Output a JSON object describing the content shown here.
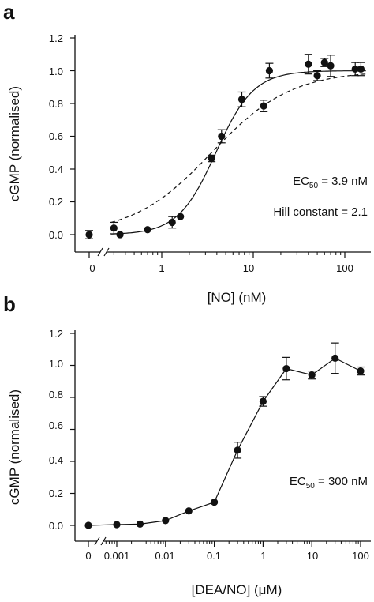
{
  "chart_data": [
    {
      "type": "scatter",
      "panel_letter": "a",
      "xlabel": "[NO] (nM)",
      "ylabel": "cGMP (normalised)",
      "x_scale": "log",
      "x_ticks": [
        {
          "value": 0,
          "label": "0"
        },
        {
          "value": 1,
          "label": "1"
        },
        {
          "value": 10,
          "label": "10"
        },
        {
          "value": 100,
          "label": "100"
        }
      ],
      "y_ticks": [
        {
          "value": 0,
          "label": "0.0"
        },
        {
          "value": 0.2,
          "label": "0.2"
        },
        {
          "value": 0.4,
          "label": "0.4"
        },
        {
          "value": 0.6,
          "label": "0.6"
        },
        {
          "value": 0.8,
          "label": "0.8"
        },
        {
          "value": 1.0,
          "label": "1.0"
        },
        {
          "value": 1.2,
          "label": "1.2"
        }
      ],
      "ylim": [
        0,
        1.2
      ],
      "xlim": [
        0.25,
        170
      ],
      "axis_break": true,
      "series": [
        {
          "marker": "filled-circle",
          "points": [
            {
              "x": 0,
              "y": 0.0,
              "err": 0.025
            },
            {
              "x": 0.3,
              "y": 0.04,
              "err": 0.035
            },
            {
              "x": 0.35,
              "y": 0.0,
              "err": 0.0
            },
            {
              "x": 0.7,
              "y": 0.03,
              "err": 0.0
            },
            {
              "x": 1.3,
              "y": 0.075,
              "err": 0.035
            },
            {
              "x": 1.6,
              "y": 0.11,
              "err": 0.0
            },
            {
              "x": 3.5,
              "y": 0.465,
              "err": 0.02
            },
            {
              "x": 4.5,
              "y": 0.6,
              "err": 0.04
            },
            {
              "x": 7.5,
              "y": 0.825,
              "err": 0.045
            },
            {
              "x": 13,
              "y": 0.785,
              "err": 0.035
            },
            {
              "x": 15,
              "y": 1.0,
              "err": 0.045
            },
            {
              "x": 40,
              "y": 1.04,
              "err": 0.06
            },
            {
              "x": 50,
              "y": 0.97,
              "err": 0.03
            },
            {
              "x": 60,
              "y": 1.05,
              "err": 0.025
            },
            {
              "x": 70,
              "y": 1.03,
              "err": 0.065
            },
            {
              "x": 130,
              "y": 1.01,
              "err": 0.04
            },
            {
              "x": 150,
              "y": 1.01,
              "err": 0.04
            }
          ]
        }
      ],
      "fits": [
        {
          "style": "solid",
          "model": "hill",
          "ec50": 3.9,
          "n": 2.1,
          "top": 1.0,
          "bottom": 0.0
        },
        {
          "style": "dashed",
          "model": "hill",
          "ec50": 3.5,
          "n": 1.0,
          "top": 1.0,
          "bottom": 0.0
        }
      ],
      "annotations": [
        {
          "text": "EC",
          "sub": "50",
          "tail": " = 3.9 nM"
        },
        {
          "text": "Hill constant = 2.1"
        }
      ]
    },
    {
      "type": "line",
      "panel_letter": "b",
      "xlabel": "[DEA/NO] (μM)",
      "ylabel": "cGMP (normalised)",
      "x_scale": "log",
      "x_ticks": [
        {
          "value": 0,
          "label": "0"
        },
        {
          "value": 0.001,
          "label": "0.001"
        },
        {
          "value": 0.01,
          "label": "0.01"
        },
        {
          "value": 0.1,
          "label": "0.1"
        },
        {
          "value": 1,
          "label": "1"
        },
        {
          "value": 10,
          "label": "10"
        },
        {
          "value": 100,
          "label": "100"
        }
      ],
      "y_ticks": [
        {
          "value": 0,
          "label": "0.0"
        },
        {
          "value": 0.2,
          "label": "0.2"
        },
        {
          "value": 0.4,
          "label": "0.4"
        },
        {
          "value": 0.6,
          "label": "0.6"
        },
        {
          "value": 0.8,
          "label": "0.8"
        },
        {
          "value": 1.0,
          "label": "1.0"
        },
        {
          "value": 1.2,
          "label": "1.2"
        }
      ],
      "ylim": [
        0,
        1.2
      ],
      "xlim": [
        0.0006,
        130
      ],
      "axis_break": true,
      "series": [
        {
          "marker": "filled-circle",
          "connected": true,
          "points": [
            {
              "x": 0,
              "y": 0.0,
              "err": 0.0
            },
            {
              "x": 0.001,
              "y": 0.005,
              "err": 0.0
            },
            {
              "x": 0.003,
              "y": 0.008,
              "err": 0.0
            },
            {
              "x": 0.01,
              "y": 0.03,
              "err": 0.0
            },
            {
              "x": 0.03,
              "y": 0.09,
              "err": 0.0
            },
            {
              "x": 0.1,
              "y": 0.145,
              "err": 0.0
            },
            {
              "x": 0.3,
              "y": 0.47,
              "err": 0.05
            },
            {
              "x": 1,
              "y": 0.775,
              "err": 0.03
            },
            {
              "x": 3,
              "y": 0.98,
              "err": 0.07
            },
            {
              "x": 10,
              "y": 0.94,
              "err": 0.025
            },
            {
              "x": 30,
              "y": 1.045,
              "err": 0.095
            },
            {
              "x": 100,
              "y": 0.965,
              "err": 0.025
            }
          ]
        }
      ],
      "annotations": [
        {
          "text": "EC",
          "sub": "50",
          "tail": " = 300 nM"
        }
      ]
    }
  ]
}
